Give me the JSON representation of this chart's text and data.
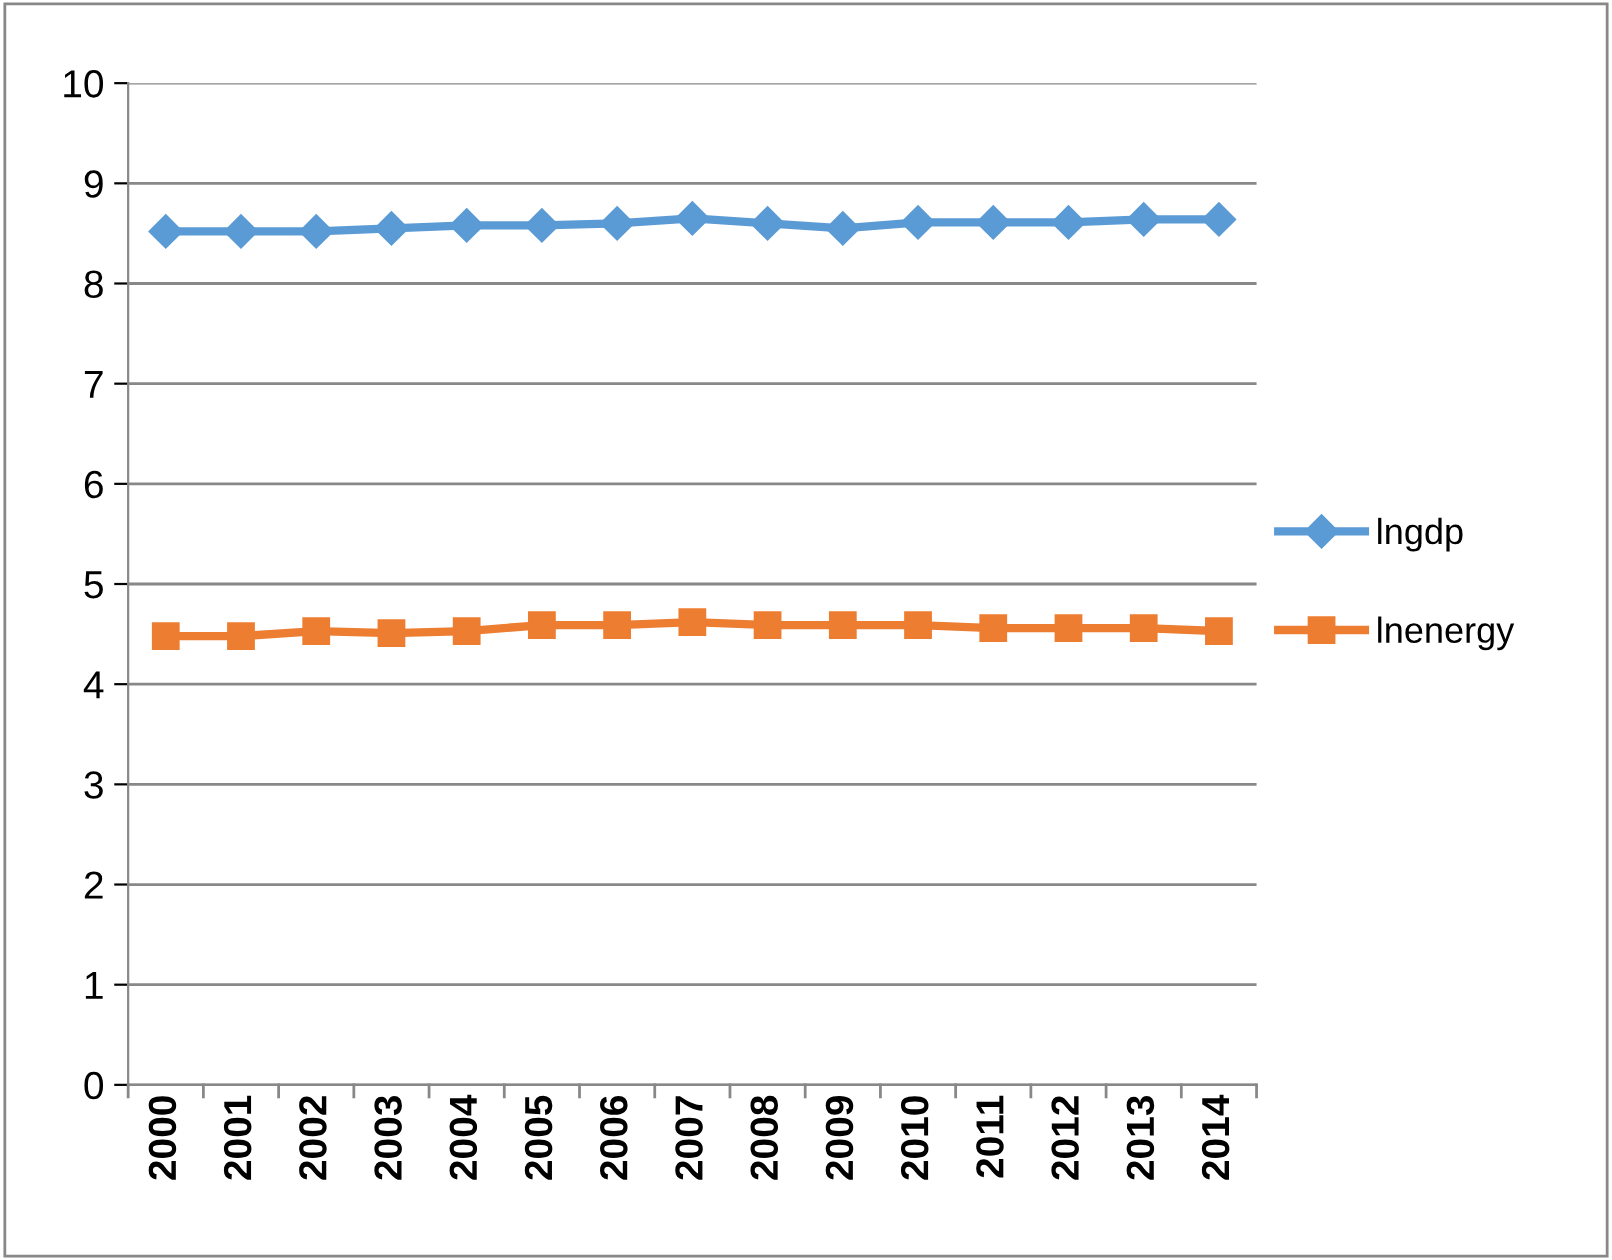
{
  "chart_data": {
    "type": "line",
    "categories": [
      "2000",
      "2001",
      "2002",
      "2003",
      "2004",
      "2005",
      "2006",
      "2007",
      "2008",
      "2009",
      "2010",
      "2011",
      "2012",
      "2013",
      "2014"
    ],
    "series": [
      {
        "name": "lngdp",
        "color": "#5b9bd5",
        "marker": "diamond",
        "values": [
          8.52,
          8.52,
          8.52,
          8.55,
          8.58,
          8.58,
          8.6,
          8.65,
          8.6,
          8.55,
          8.61,
          8.61,
          8.61,
          8.64,
          8.64
        ]
      },
      {
        "name": "lnenergy",
        "color": "#ed7d31",
        "marker": "square",
        "values": [
          4.48,
          4.48,
          4.53,
          4.51,
          4.53,
          4.59,
          4.59,
          4.62,
          4.59,
          4.59,
          4.59,
          4.56,
          4.56,
          4.56,
          4.53
        ]
      }
    ],
    "ylim": [
      0,
      10
    ],
    "yticks": [
      0,
      1,
      2,
      3,
      4,
      5,
      6,
      7,
      8,
      9,
      10
    ],
    "grid": "y",
    "legend": "right",
    "line_style": "solid"
  }
}
